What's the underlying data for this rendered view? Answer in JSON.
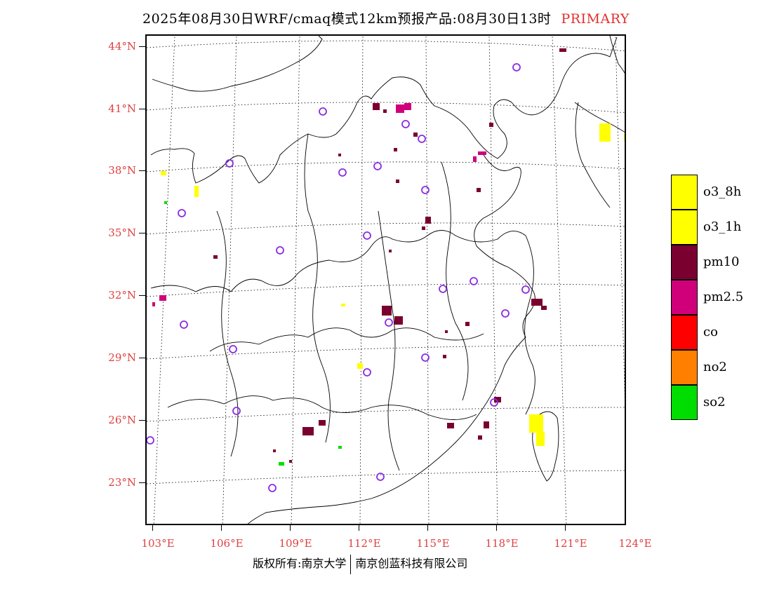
{
  "header": {
    "title": "2025年08月30日WRF/cmaq模式12km预报产品:08月30日13时",
    "tag": "PRIMARY"
  },
  "axes": {
    "lat_labels": [
      "44°N",
      "41°N",
      "38°N",
      "35°N",
      "32°N",
      "29°N",
      "26°N",
      "23°N"
    ],
    "lon_labels": [
      "103°E",
      "106°E",
      "109°E",
      "112°E",
      "115°E",
      "118°E",
      "121°E",
      "124°E"
    ]
  },
  "legend": {
    "items": [
      {
        "label": "o3_8h",
        "color": "#ffff00"
      },
      {
        "label": "o3_1h",
        "color": "#ffff00"
      },
      {
        "label": "pm10",
        "color": "#7a0030"
      },
      {
        "label": "pm2.5",
        "color": "#d0007a"
      },
      {
        "label": "co",
        "color": "#ff0000"
      },
      {
        "label": "no2",
        "color": "#ff8000"
      },
      {
        "label": "so2",
        "color": "#00dd00"
      }
    ]
  },
  "footer": {
    "left": "版权所有:南京大学",
    "right": "南京创蓝科技有限公司"
  },
  "colors": {
    "label_red": "#e04040",
    "station_circle": "#8a2be2"
  }
}
